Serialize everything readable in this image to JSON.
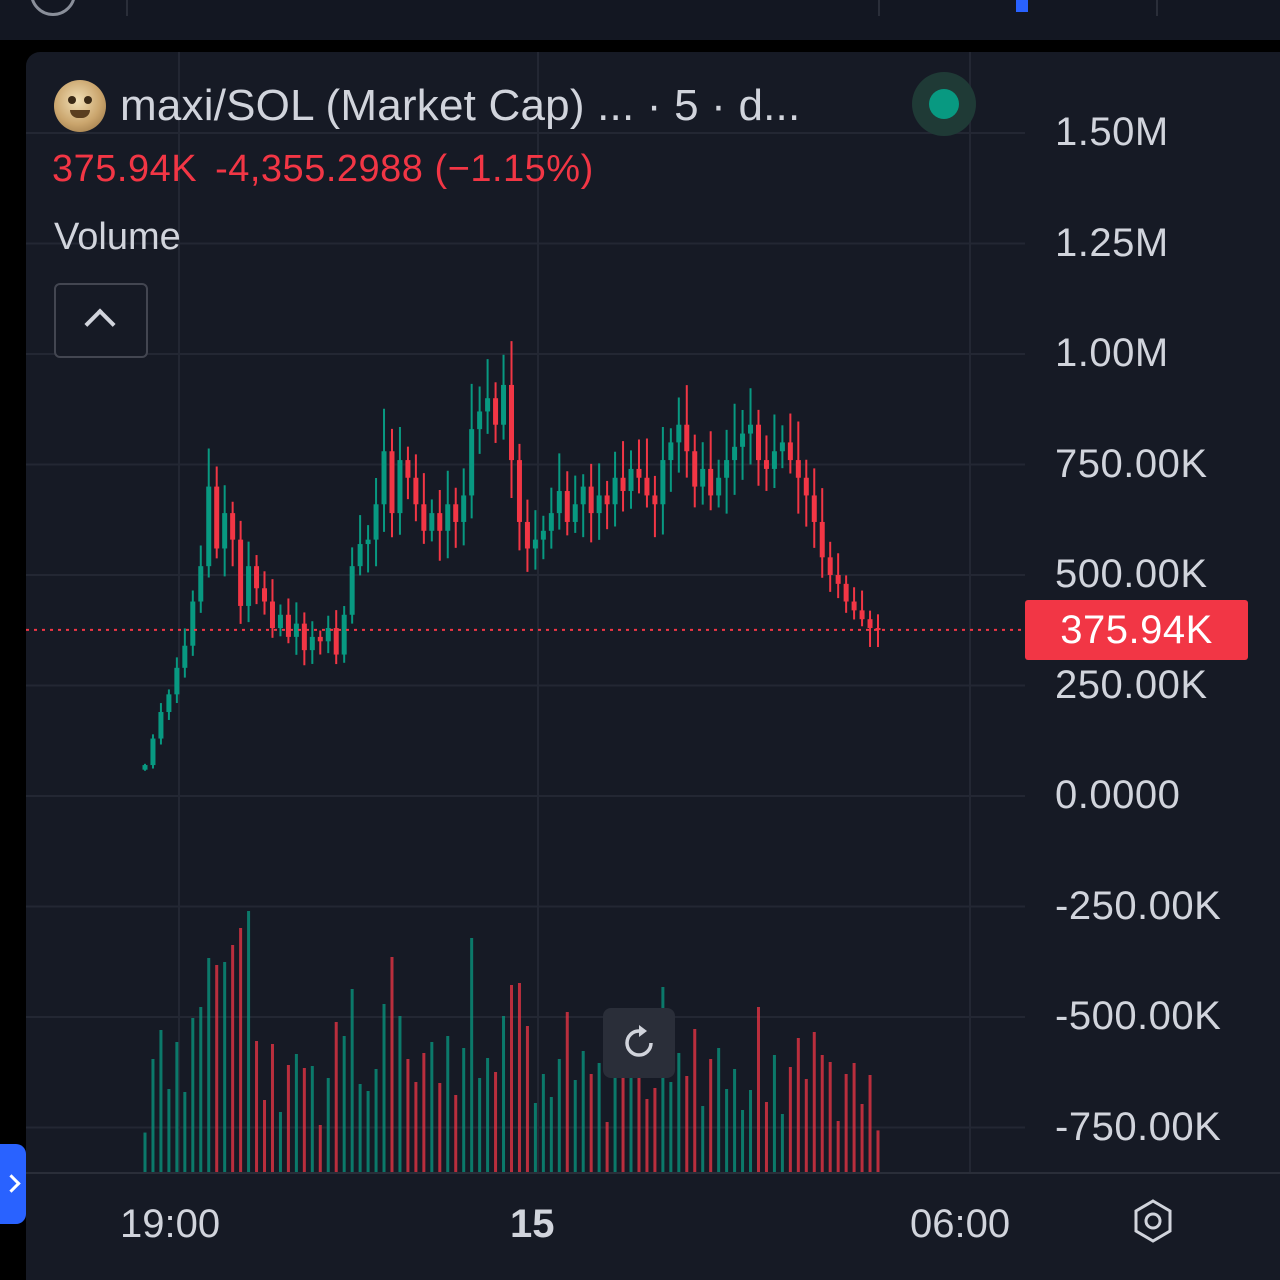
{
  "header": {
    "title": "maxi/SOL (Market Cap) ... · 5 · d...",
    "last_price": "375.94K",
    "change": "-4,355.2988 (−1.15%)",
    "volume_label": "Volume"
  },
  "colors": {
    "background": "#161a25",
    "up": "#089981",
    "down": "#f23645",
    "text": "#d1d4dc",
    "grid": "#232733"
  },
  "chart_data": {
    "type": "candlestick",
    "interval": "5",
    "y_axis": {
      "ticks": [
        "1.50M",
        "1.25M",
        "1.00M",
        "750.00K",
        "500.00K",
        "250.00K",
        "0.0000",
        "-250.00K",
        "-500.00K",
        "-750.00K"
      ],
      "tick_values": [
        1500000,
        1250000,
        1000000,
        750000,
        500000,
        250000,
        0,
        -250000,
        -500000,
        -750000
      ]
    },
    "x_axis": {
      "ticks": [
        "19:00",
        "15",
        "06:00"
      ]
    },
    "last_value": 375940,
    "last_value_label": "375.94K",
    "candle_closes_K": [
      70,
      130,
      190,
      230,
      290,
      340,
      440,
      520,
      700,
      560,
      640,
      580,
      430,
      520,
      470,
      440,
      380,
      410,
      360,
      390,
      330,
      360,
      350,
      380,
      320,
      410,
      520,
      570,
      580,
      660,
      780,
      640,
      760,
      720,
      660,
      600,
      640,
      600,
      660,
      620,
      680,
      830,
      870,
      900,
      840,
      930,
      760,
      620,
      560,
      580,
      600,
      640,
      690,
      620,
      660,
      700,
      640,
      680,
      660,
      720,
      690,
      740,
      720,
      680,
      660,
      760,
      800,
      840,
      780,
      700,
      740,
      680,
      720,
      760,
      790,
      820,
      840,
      760,
      740,
      780,
      800,
      760,
      720,
      680,
      620,
      540,
      500,
      480,
      440,
      420,
      400,
      380,
      376
    ],
    "volume_series_note": "bars in lower pane, unscaled"
  },
  "ui": {
    "reset_icon": "reset-icon",
    "settings_icon": "settings-icon",
    "collapse_icon": "chevron-up-icon"
  }
}
